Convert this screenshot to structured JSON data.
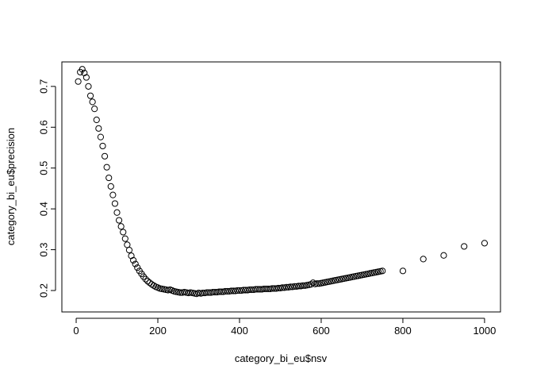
{
  "chart_data": {
    "type": "scatter",
    "x_label": "category_bi_eu$nsv",
    "y_label": "category_bi_eu$precision",
    "xlim": [
      -35,
      1039
    ],
    "ylim": [
      0.1475,
      0.76
    ],
    "xticks": [
      0,
      200,
      400,
      600,
      800,
      1000
    ],
    "yticks": [
      0.2,
      0.3,
      0.4,
      0.5,
      0.6,
      0.7
    ],
    "color": "#000000",
    "x": [
      5,
      10,
      15,
      20,
      25,
      30,
      35,
      40,
      45,
      50,
      55,
      60,
      65,
      70,
      75,
      80,
      85,
      90,
      95,
      100,
      105,
      110,
      115,
      120,
      125,
      130,
      135,
      140,
      145,
      150,
      155,
      160,
      165,
      170,
      175,
      180,
      185,
      190,
      195,
      200,
      205,
      210,
      215,
      220,
      225,
      230,
      235,
      240,
      245,
      250,
      255,
      260,
      265,
      270,
      275,
      280,
      285,
      290,
      295,
      300,
      305,
      310,
      315,
      320,
      325,
      330,
      335,
      340,
      345,
      350,
      355,
      360,
      365,
      370,
      375,
      380,
      385,
      390,
      395,
      400,
      405,
      410,
      415,
      420,
      425,
      430,
      435,
      440,
      445,
      450,
      455,
      460,
      465,
      470,
      475,
      480,
      485,
      490,
      495,
      500,
      505,
      510,
      515,
      520,
      525,
      530,
      535,
      540,
      545,
      550,
      555,
      560,
      565,
      570,
      575,
      580,
      585,
      590,
      595,
      600,
      605,
      610,
      615,
      620,
      625,
      630,
      635,
      640,
      645,
      650,
      655,
      660,
      665,
      670,
      675,
      680,
      685,
      690,
      695,
      700,
      705,
      710,
      715,
      720,
      725,
      730,
      735,
      740,
      745,
      750,
      800,
      850,
      900,
      950,
      1000
    ],
    "values": [
      0.712,
      0.735,
      0.742,
      0.733,
      0.722,
      0.7,
      0.677,
      0.662,
      0.645,
      0.618,
      0.597,
      0.576,
      0.554,
      0.529,
      0.502,
      0.476,
      0.455,
      0.434,
      0.413,
      0.391,
      0.372,
      0.357,
      0.343,
      0.327,
      0.312,
      0.299,
      0.285,
      0.274,
      0.265,
      0.256,
      0.248,
      0.241,
      0.234,
      0.228,
      0.223,
      0.219,
      0.215,
      0.212,
      0.209,
      0.207,
      0.205,
      0.204,
      0.203,
      0.202,
      0.201,
      0.202,
      0.2,
      0.198,
      0.197,
      0.196,
      0.195,
      0.195,
      0.196,
      0.195,
      0.194,
      0.195,
      0.194,
      0.193,
      0.192,
      0.194,
      0.193,
      0.194,
      0.194,
      0.195,
      0.195,
      0.195,
      0.196,
      0.196,
      0.196,
      0.197,
      0.197,
      0.197,
      0.198,
      0.198,
      0.198,
      0.199,
      0.199,
      0.199,
      0.2,
      0.2,
      0.2,
      0.201,
      0.201,
      0.201,
      0.202,
      0.202,
      0.202,
      0.203,
      0.203,
      0.203,
      0.203,
      0.204,
      0.204,
      0.204,
      0.204,
      0.205,
      0.205,
      0.205,
      0.206,
      0.206,
      0.207,
      0.207,
      0.208,
      0.208,
      0.209,
      0.209,
      0.21,
      0.21,
      0.211,
      0.211,
      0.212,
      0.212,
      0.213,
      0.214,
      0.215,
      0.219,
      0.216,
      0.217,
      0.217,
      0.218,
      0.219,
      0.22,
      0.221,
      0.222,
      0.223,
      0.224,
      0.225,
      0.226,
      0.227,
      0.228,
      0.229,
      0.23,
      0.231,
      0.232,
      0.233,
      0.234,
      0.235,
      0.236,
      0.237,
      0.238,
      0.239,
      0.24,
      0.241,
      0.242,
      0.243,
      0.244,
      0.245,
      0.246,
      0.247,
      0.248,
      0.248,
      0.277,
      0.286,
      0.308,
      0.316
    ]
  }
}
